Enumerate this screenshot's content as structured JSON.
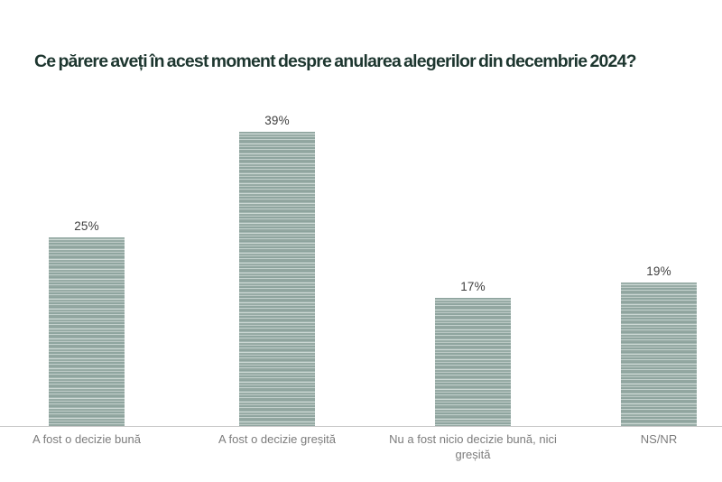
{
  "page": {
    "title": "Ce părere aveți în acest moment despre anularea alegerilor din decembrie 2024?"
  },
  "chart_data": {
    "type": "bar",
    "title": "Ce părere aveți în acest moment despre anularea alegerilor din decembrie 2024?",
    "categories": [
      "A fost o decizie bună",
      "A fost o decizie greșită",
      "Nu a fost nicio decizie bună, nici greșită",
      "NS/NR"
    ],
    "values": [
      25,
      39,
      17,
      19
    ],
    "value_labels": [
      "25%",
      "39%",
      "17%",
      "19%"
    ],
    "unit": "%",
    "xlabel": "",
    "ylabel": "",
    "ylim": [
      0,
      45
    ],
    "grid": false,
    "legend": null,
    "bar_texture": "horizontal-stripes",
    "colors": {
      "bar_base": "#93a7a1",
      "bar_stripe_light": "#ccd8d4",
      "title_text": "#1d362f",
      "value_text": "#3f3f3f",
      "category_text": "#7c7c7c",
      "axis_line": "#cacaca",
      "background": "#ffffff"
    }
  }
}
